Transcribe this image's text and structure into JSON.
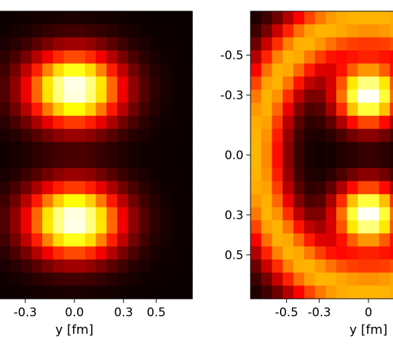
{
  "chart_data": [
    {
      "type": "heatmap",
      "colormap": "hot",
      "grid": false,
      "xlabel": "y [fm]",
      "ylabel": "",
      "x_ticks": [
        {
          "value": -0.3,
          "label": "-0.3"
        },
        {
          "value": 0.0,
          "label": "0.0"
        },
        {
          "value": 0.3,
          "label": "0.3"
        },
        {
          "value": 0.5,
          "label": "0.5"
        }
      ],
      "y_ticks": [],
      "x_range": [
        -0.72,
        0.72
      ],
      "y_range": [
        -0.72,
        0.72
      ],
      "blobs": [
        {
          "x": 0.0,
          "y": -0.33,
          "sx": 0.2,
          "sy": 0.13,
          "amp": 1.0
        },
        {
          "x": 0.0,
          "y": 0.33,
          "sx": 0.2,
          "sy": 0.13,
          "amp": 1.0
        }
      ],
      "rings": []
    },
    {
      "type": "heatmap",
      "colormap": "hot",
      "grid": false,
      "xlabel": "y [fm]",
      "ylabel": "",
      "x_ticks": [
        {
          "value": -0.5,
          "label": "-0.5"
        },
        {
          "value": -0.3,
          "label": "-0.3"
        },
        {
          "value": 0.0,
          "label": "0"
        }
      ],
      "y_ticks": [
        {
          "value": -0.5,
          "label": "-0.5"
        },
        {
          "value": -0.3,
          "label": "-0.3"
        },
        {
          "value": 0.0,
          "label": "0.0"
        },
        {
          "value": 0.3,
          "label": "0.3"
        },
        {
          "value": 0.5,
          "label": "0.5"
        }
      ],
      "x_range": [
        -0.72,
        0.72
      ],
      "y_range": [
        -0.72,
        0.72
      ],
      "blobs": [
        {
          "x": 0.0,
          "y": -0.3,
          "sx": 0.14,
          "sy": 0.11,
          "amp": 1.0
        },
        {
          "x": 0.0,
          "y": 0.3,
          "sx": 0.14,
          "sy": 0.11,
          "amp": 1.0
        }
      ],
      "rings": [
        {
          "cx": 0.0,
          "cy": 0.0,
          "r": 0.68,
          "w": 0.12,
          "amp": 0.62
        }
      ]
    }
  ]
}
